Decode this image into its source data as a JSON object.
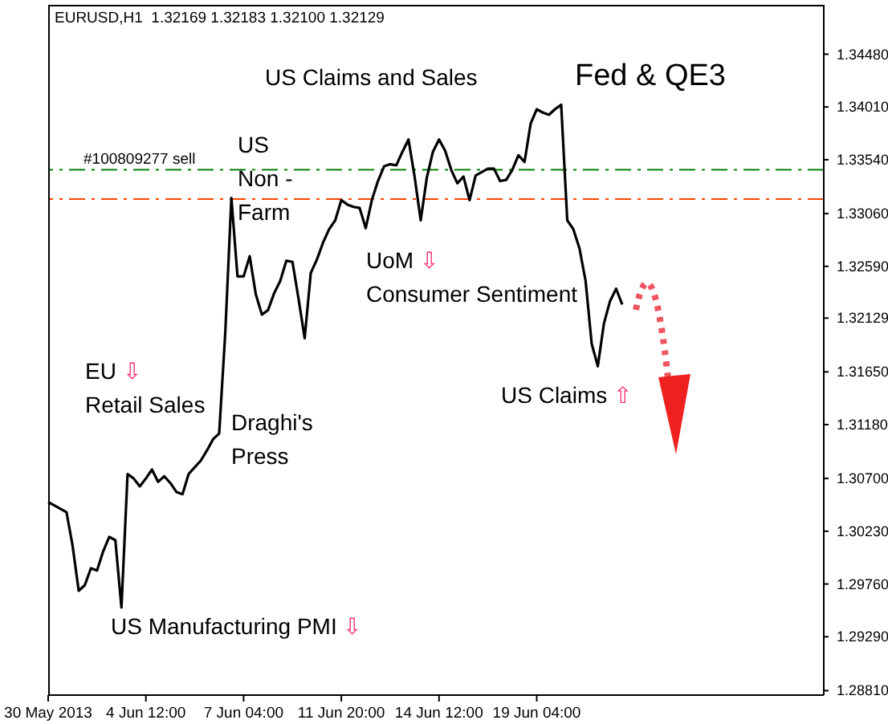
{
  "chart_data": {
    "type": "line",
    "title": "EURUSD,H1  1.32169 1.32183 1.32100 1.32129",
    "categories": [
      "30 May 2013",
      null,
      null,
      null,
      null,
      null,
      null,
      null,
      null,
      null,
      null,
      null,
      null,
      null,
      null,
      null,
      "4 Jun 12:00",
      null,
      null,
      null,
      null,
      null,
      null,
      null,
      null,
      null,
      null,
      null,
      null,
      null,
      null,
      null,
      "7 Jun 04:00",
      null,
      null,
      null,
      null,
      null,
      null,
      null,
      null,
      null,
      null,
      null,
      null,
      null,
      null,
      null,
      "11 Jun 20:00",
      null,
      null,
      null,
      null,
      null,
      null,
      null,
      null,
      null,
      null,
      null,
      null,
      null,
      null,
      null,
      "14 Jun 12:00",
      null,
      null,
      null,
      null,
      null,
      null,
      null,
      null,
      null,
      null,
      null,
      null,
      null,
      null,
      null,
      "19 Jun 04:00",
      null,
      null,
      null,
      null,
      null,
      null,
      null,
      null,
      null,
      null,
      null,
      null,
      null,
      null,
      null,
      null,
      null,
      null,
      null,
      null,
      null,
      null,
      null,
      null,
      null,
      null,
      null,
      null,
      null,
      null,
      null,
      null,
      null,
      null,
      null,
      null,
      null,
      null,
      null,
      null,
      null,
      null,
      null,
      null,
      null,
      null,
      null
    ],
    "series": [
      {
        "color": "#000000",
        "values": [
          1.3049,
          1.3046,
          1.3043,
          1.304,
          1.301,
          1.297,
          1.2975,
          1.299,
          1.2988,
          1.3005,
          1.3018,
          1.3015,
          1.2955,
          1.3074,
          1.307,
          1.3063,
          1.307,
          1.3078,
          1.3067,
          1.3072,
          1.3066,
          1.3058,
          1.3056,
          1.3074,
          1.308,
          1.3086,
          1.3095,
          1.3105,
          1.311,
          1.32,
          1.332,
          1.325,
          1.325,
          1.3268,
          1.3234,
          1.3216,
          1.322,
          1.3235,
          1.3246,
          1.3264,
          1.3263,
          1.323,
          1.3195,
          1.3253,
          1.3265,
          1.328,
          1.3292,
          1.33,
          1.3318,
          1.3314,
          1.3312,
          1.3311,
          1.3293,
          1.3318,
          1.3335,
          1.3348,
          1.335,
          1.3349,
          1.3361,
          1.3372,
          1.3339,
          1.33,
          1.3338,
          1.3361,
          1.3372,
          1.3362,
          1.3345,
          1.3333,
          1.3339,
          1.3318,
          1.334,
          1.3343,
          1.3346,
          1.3346,
          1.3335,
          1.3336,
          1.3345,
          1.3358,
          1.3352,
          1.3386,
          1.3399,
          1.3396,
          1.3394,
          1.3399,
          1.3403,
          1.33,
          1.3292,
          1.3275,
          1.3246,
          1.319,
          1.317,
          1.3208,
          1.3228,
          1.3239,
          1.3225,
          null,
          null,
          null,
          null,
          null,
          null,
          null,
          null,
          null,
          null,
          null,
          null,
          null,
          null,
          null,
          null,
          null,
          null,
          null,
          null,
          null,
          null,
          null,
          null,
          null,
          null,
          null,
          null,
          null,
          null,
          null,
          null,
          null
        ]
      }
    ],
    "ylim": [
      1.2877,
      1.3492
    ],
    "yticks": [
      {
        "value": 1.3448,
        "label": "1.34480"
      },
      {
        "value": 1.3401,
        "label": "1.34010"
      },
      {
        "value": 1.3354,
        "label": "1.33540"
      },
      {
        "value": 1.3306,
        "label": "1.33060"
      },
      {
        "value": 1.3259,
        "label": "1.32590"
      },
      {
        "value": 1.32129,
        "label": "1.32129"
      },
      {
        "value": 1.3165,
        "label": "1.31650"
      },
      {
        "value": 1.3118,
        "label": "1.31180"
      },
      {
        "value": 1.307,
        "label": "1.30700"
      },
      {
        "value": 1.3023,
        "label": "1.30230"
      },
      {
        "value": 1.2976,
        "label": "1.29760"
      },
      {
        "value": 1.2929,
        "label": "1.29290"
      },
      {
        "value": 1.2881,
        "label": "1.28810"
      }
    ],
    "ref_lines": [
      {
        "axis": "y",
        "value": 1.3345,
        "label": "#100809277 sell",
        "color": "#008000",
        "line_style": "dashed"
      },
      {
        "axis": "y",
        "value": 1.3319,
        "label": null,
        "color": "#ff4500",
        "line_style": "dashed"
      }
    ],
    "annotations": [
      "US Claims and Sales",
      "Fed & QE3",
      "US\nNon -\nFarm",
      "UoM ⇩\nConsumer Sentiment",
      "EU ⇩\nRetail Sales",
      "Draghi's\nPress",
      "US Manufacturing PMI ⇩",
      "US Claims ⇧"
    ],
    "grid": false,
    "legend": false,
    "marker": "none",
    "line_style": "solid"
  }
}
